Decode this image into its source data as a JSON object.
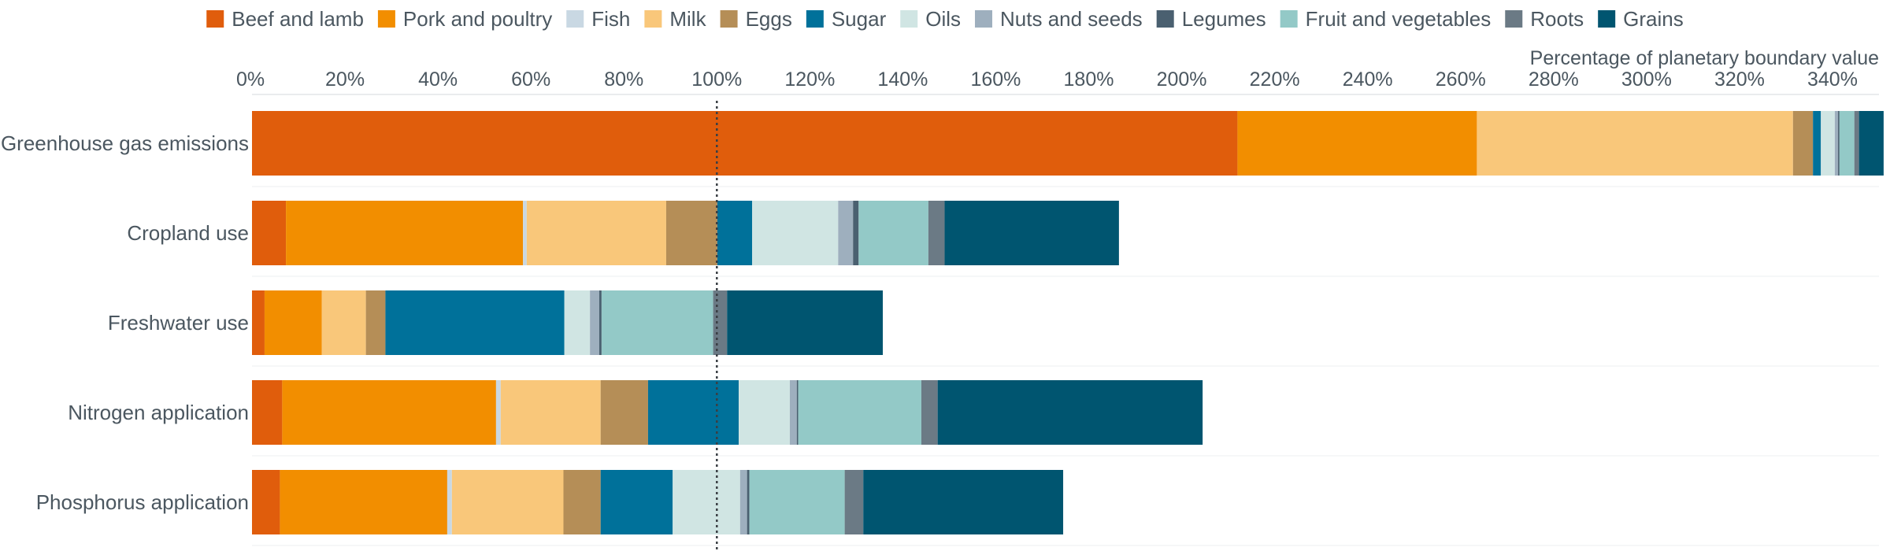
{
  "chart_data": {
    "type": "bar",
    "orientation": "horizontal",
    "stacked": true,
    "xlabel": "Percentage of planetary boundary value",
    "xlim": [
      0,
      350
    ],
    "x_ticks": [
      "0%",
      "20%",
      "40%",
      "60%",
      "80%",
      "100%",
      "120%",
      "140%",
      "160%",
      "180%",
      "200%",
      "220%",
      "240%",
      "260%",
      "280%",
      "300%",
      "320%",
      "340%"
    ],
    "x_tick_values": [
      0,
      20,
      40,
      60,
      80,
      100,
      120,
      140,
      160,
      180,
      200,
      220,
      240,
      260,
      280,
      300,
      320,
      340
    ],
    "x_axis_position": "top",
    "reference_line": {
      "value": 100,
      "style": "dotted"
    },
    "legend_position": "top",
    "grid": "horizontal-light",
    "categories": [
      "Greenhouse gas emissions",
      "Cropland use",
      "Freshwater use",
      "Nitrogen application",
      "Phosphorus application"
    ],
    "series": [
      {
        "name": "Beef and lamb",
        "color": "#e05d0c",
        "values": [
          212,
          7.3,
          2.7,
          6.5,
          6.0
        ]
      },
      {
        "name": "Pork and poultry",
        "color": "#f28e00",
        "values": [
          51.5,
          51.0,
          12.3,
          46.0,
          36.0
        ]
      },
      {
        "name": "Fish",
        "color": "#c9d8e3",
        "values": [
          0,
          0.8,
          0,
          1.0,
          1.0
        ]
      },
      {
        "name": "Milk",
        "color": "#f9c77a",
        "values": [
          68.0,
          30.0,
          9.5,
          21.5,
          24.0
        ]
      },
      {
        "name": "Eggs",
        "color": "#b58e57",
        "values": [
          4.3,
          11.0,
          4.2,
          10.2,
          8.0
        ]
      },
      {
        "name": "Sugar",
        "color": "#00719a",
        "values": [
          1.7,
          7.5,
          38.5,
          19.5,
          15.5
        ]
      },
      {
        "name": "Oils",
        "color": "#d0e5e3",
        "values": [
          3.0,
          18.5,
          5.5,
          11.0,
          14.5
        ]
      },
      {
        "name": "Nuts and seeds",
        "color": "#9eafbe",
        "values": [
          0.7,
          3.2,
          2.0,
          1.5,
          1.5
        ]
      },
      {
        "name": "Legumes",
        "color": "#4a6070",
        "values": [
          0.3,
          1.2,
          0.5,
          0.3,
          0.5
        ]
      },
      {
        "name": "Fruit and vegetables",
        "color": "#93c9c7",
        "values": [
          3.2,
          15.0,
          24.0,
          26.5,
          20.5
        ]
      },
      {
        "name": "Roots",
        "color": "#6b7a85",
        "values": [
          1.0,
          3.5,
          3.0,
          3.5,
          4.0
        ]
      },
      {
        "name": "Grains",
        "color": "#005570",
        "values": [
          5.3,
          37.5,
          33.5,
          57.0,
          43.0
        ]
      }
    ]
  }
}
